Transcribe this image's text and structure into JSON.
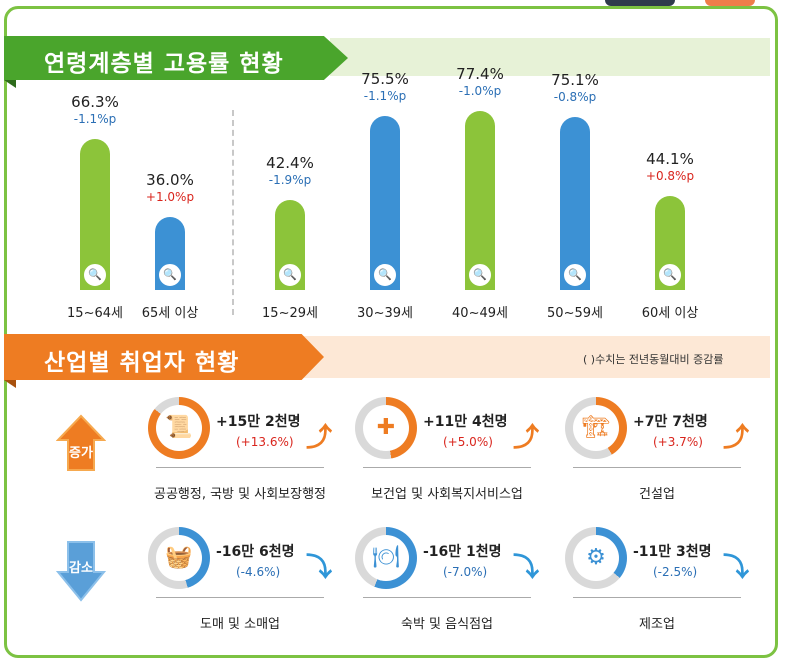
{
  "colors": {
    "green": "#8cc43a",
    "blue": "#3c91d4",
    "orange": "#ee7c22",
    "up": "#d9251d",
    "down": "#2b6fb5"
  },
  "age_section": {
    "title": "연령계층별 고용률 현황"
  },
  "industry_section": {
    "title": "산업별 취업자 현황",
    "note": "( )수치는 전년동월대비 증감률"
  },
  "chart_data": [
    {
      "type": "bar",
      "title": "연령계층별 고용률 현황",
      "categories": [
        "15~64세",
        "65세 이상",
        "15~29세",
        "30~39세",
        "40~49세",
        "50~59세",
        "60세 이상"
      ],
      "values": [
        66.3,
        36.0,
        42.4,
        75.5,
        77.4,
        75.1,
        44.1
      ],
      "value_labels": [
        "66.3%",
        "36.0%",
        "42.4%",
        "75.5%",
        "77.4%",
        "75.1%",
        "44.1%"
      ],
      "change_labels": [
        "-1.1%p",
        "+1.0%p",
        "-1.9%p",
        "-1.1%p",
        "-1.0%p",
        "-0.8%p",
        "+0.8%p"
      ],
      "changes": [
        -1.1,
        1.0,
        -1.9,
        -1.1,
        -1.0,
        -0.8,
        0.8
      ],
      "bar_colors": [
        "#8cc43a",
        "#3c91d4",
        "#8cc43a",
        "#3c91d4",
        "#8cc43a",
        "#3c91d4",
        "#8cc43a"
      ],
      "ylim": [
        0,
        80
      ]
    },
    {
      "type": "table",
      "title": "산업별 취업자 현황",
      "increase_label": "증가",
      "decrease_label": "감소",
      "rows": [
        {
          "name": "공공행정, 국방 및 사회보장행정",
          "change": "+15만 2천명",
          "rate": "(+13.6%)",
          "direction": "up",
          "icon": "scroll-icon"
        },
        {
          "name": "보건업 및 사회복지서비스업",
          "change": "+11만 4천명",
          "rate": "(+5.0%)",
          "direction": "up",
          "icon": "medical-kit-icon"
        },
        {
          "name": "건설업",
          "change": "+7만 7천명",
          "rate": "(+3.7%)",
          "direction": "up",
          "icon": "excavator-icon"
        },
        {
          "name": "도매 및 소매업",
          "change": "-16만 6천명",
          "rate": "(-4.6%)",
          "direction": "down",
          "icon": "basket-icon"
        },
        {
          "name": "숙박 및 음식점업",
          "change": "-16만 1천명",
          "rate": "(-7.0%)",
          "direction": "down",
          "icon": "plate-icon"
        },
        {
          "name": "제조업",
          "change": "-11만 3천명",
          "rate": "(-2.5%)",
          "direction": "down",
          "icon": "gears-icon"
        }
      ]
    }
  ]
}
